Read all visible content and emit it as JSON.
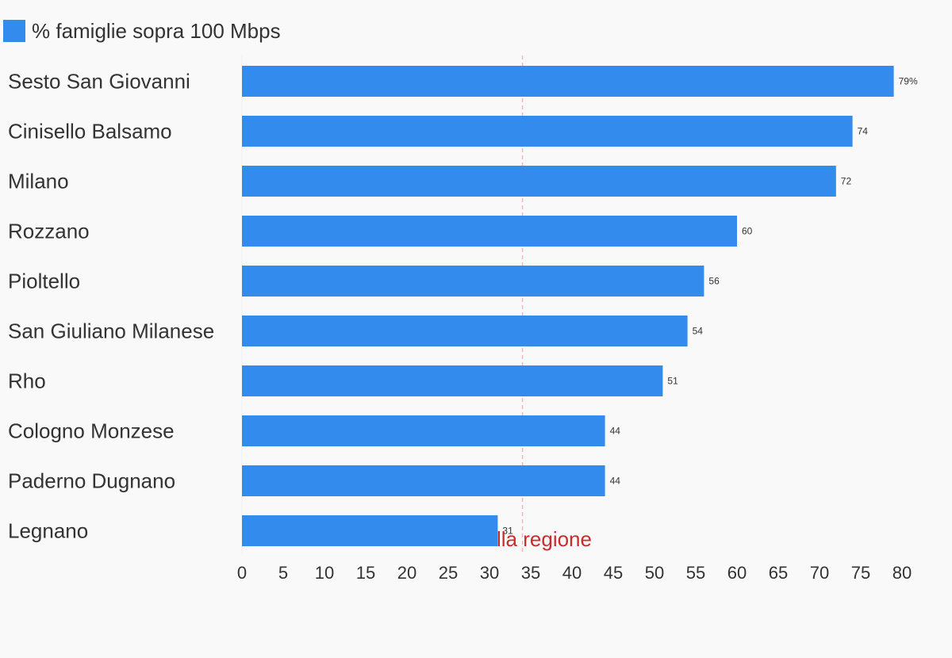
{
  "chart_data": {
    "type": "bar",
    "orientation": "horizontal",
    "categories": [
      "Sesto San Giovanni",
      "Cinisello Balsamo",
      "Milano",
      "Rozzano",
      "Pioltello",
      "San Giuliano Milanese",
      "Rho",
      "Cologno Monzese",
      "Paderno Dugnano",
      "Legnano"
    ],
    "series": [
      {
        "name": "% famiglie sopra 100 Mbps",
        "color": "#338bed",
        "values": [
          79,
          74,
          72,
          60,
          56,
          54,
          51,
          44,
          44,
          31
        ]
      }
    ],
    "value_labels": [
      "79%",
      "74",
      "72",
      "60",
      "56",
      "54",
      "51",
      "44",
      "44",
      "31"
    ],
    "xlim": [
      0,
      80
    ],
    "x_ticks": [
      "0",
      "5",
      "10",
      "15",
      "20",
      "25",
      "30",
      "35",
      "40",
      "45",
      "50",
      "55",
      "60",
      "65",
      "70",
      "75",
      "80"
    ],
    "reference_line": {
      "value": 34,
      "label": "lla regione",
      "color": "#cc2b2b",
      "style": "dashed"
    },
    "legend_position": "top-left",
    "grid": false,
    "title": "",
    "xlabel": "",
    "ylabel": ""
  }
}
